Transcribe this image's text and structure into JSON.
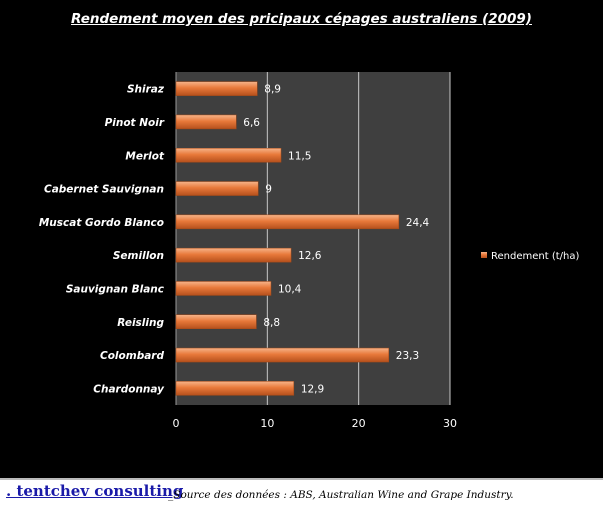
{
  "chart_data": {
    "type": "bar",
    "orientation": "horizontal",
    "title": "Rendement moyen des pricipaux cépages australiens (2009)",
    "categories": [
      "Shiraz",
      "Pinot Noir",
      "Merlot",
      "Cabernet Sauvignan",
      "Muscat Gordo Blanco",
      "Semillon",
      "Sauvignan Blanc",
      "Reisling",
      "Colombard",
      "Chardonnay"
    ],
    "series": [
      {
        "name": "Rendement (t/ha)",
        "values": [
          8.9,
          6.6,
          11.5,
          9,
          24.4,
          12.6,
          10.4,
          8.8,
          23.3,
          12.9
        ]
      }
    ],
    "data_labels": [
      "8,9",
      "6,6",
      "11,5",
      "9",
      "24,4",
      "12,6",
      "10,4",
      "8,8",
      "23,3",
      "12,9"
    ],
    "xlim": [
      0,
      30
    ],
    "xticks": [
      0,
      10,
      20,
      30
    ],
    "grid": true,
    "legend_position": "right",
    "bar_color": "#E8793A",
    "plot_background": "#3f3f3f"
  },
  "footer": {
    "brand": ". tentchev consulting",
    "source": "_Source des données : ABS, Australian Wine and Grape Industry."
  }
}
